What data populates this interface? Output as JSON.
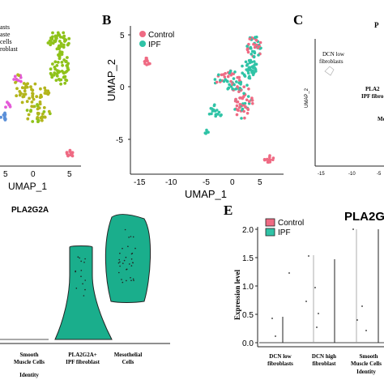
{
  "panel_a": {
    "legend_lines": [
      "asts",
      "aste",
      "cells",
      "roblast"
    ],
    "x_axis_label": "UMAP_1",
    "x_ticks": [
      "5",
      "0",
      "5"
    ]
  },
  "panel_b": {
    "letter": "B",
    "legend": [
      {
        "label": "Control",
        "color": "#ef6a83"
      },
      {
        "label": "IPF",
        "color": "#2fc3a6"
      }
    ],
    "x_axis_label": "UMAP_1",
    "y_axis_label": "UMAP_2",
    "x_ticks": [
      "-15",
      "-10",
      "-5",
      "0",
      "5"
    ],
    "y_ticks": [
      "5",
      "0",
      "-5"
    ]
  },
  "panel_c": {
    "letter": "C",
    "title_fragment": "P",
    "y_axis_label": "UMAP_2",
    "x_ticks": [
      "-15",
      "-10",
      "-5"
    ],
    "labels": [
      "DCN low",
      "fibroblasts",
      "PLA2",
      "IPF fibro",
      "Me"
    ]
  },
  "panel_d": {
    "title": "PLA2G2A",
    "categories": [
      "Smooth\nMuscle Cells",
      "PLA2G2A+\nIPF fibroblast",
      "Mesothelial\nCells"
    ],
    "x_title": "Identity",
    "fill_color": "#1aae8c"
  },
  "panel_e": {
    "letter": "E",
    "title": "PLA2G",
    "legend": [
      {
        "label": "Control",
        "color": "#ef6a83"
      },
      {
        "label": "IPF",
        "color": "#2fc3a6"
      }
    ],
    "y_axis_label": "Expression level",
    "y_ticks": [
      "2.0",
      "1.5",
      "1.0",
      "0.5",
      "0.0"
    ],
    "categories": [
      "DCN low\nfibroblasts",
      "DCN high\nfibroblast",
      "Smooth\nMuscle Cells"
    ],
    "x_title": "Identity"
  },
  "colors": {
    "control": "#ef6a83",
    "ipf": "#2fc3a6",
    "cluster_green": "#8fc21a",
    "cluster_olive": "#b3b51c",
    "cluster_pink": "#e45bd8",
    "cluster_blue": "#5a8fd8",
    "violin_fill": "#1aae8c"
  }
}
